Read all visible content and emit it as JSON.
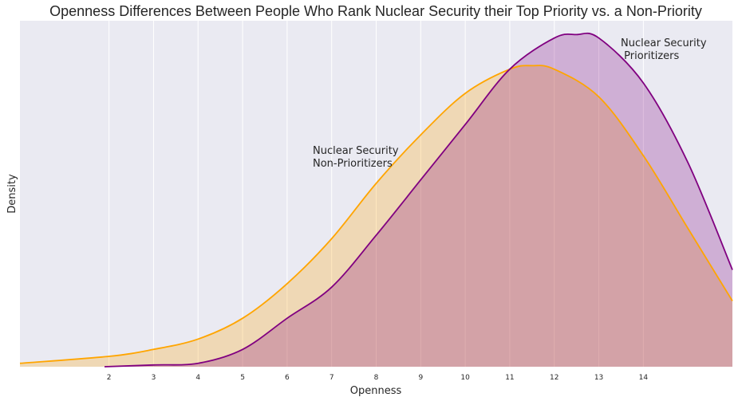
{
  "chart_data": {
    "type": "area",
    "subtype": "kde",
    "title": "Openness Differences Between People Who Rank Nuclear Security their Top Priority vs. a Non-Priority",
    "xlabel": "Openness",
    "ylabel": "Density",
    "xlim": [
      0,
      16
    ],
    "x_ticks": [
      2,
      3,
      4,
      5,
      6,
      7,
      8,
      9,
      10,
      11,
      12,
      13,
      14
    ],
    "y_ticks": [],
    "grid": true,
    "legend": null,
    "annotations": [
      {
        "text_lines": [
          "Nuclear Security",
          "Non-Prioritizers"
        ],
        "x": 6.5,
        "series": "Nuclear Security Non-Prioritizers"
      },
      {
        "text_lines": [
          "Nuclear Security",
          " Prioritizers"
        ],
        "x": 13.4,
        "series": "Nuclear Security Prioritizers"
      }
    ],
    "series": [
      {
        "name": "Nuclear Security Non-Prioritizers",
        "line_color": "#FFA500",
        "fill_color": "#F0D9B5",
        "peak_x": 11.5,
        "x": [
          0,
          2,
          3,
          4,
          5,
          6,
          7,
          8,
          9,
          10,
          11,
          11.5,
          12,
          13,
          14,
          15,
          16
        ],
        "density_relative": [
          0.01,
          0.03,
          0.05,
          0.08,
          0.14,
          0.24,
          0.37,
          0.53,
          0.67,
          0.79,
          0.86,
          0.87,
          0.86,
          0.78,
          0.61,
          0.4,
          0.19
        ]
      },
      {
        "name": "Nuclear Security Prioritizers",
        "line_color": "#800080",
        "fill_color": "#D2AED6",
        "peak_x": 12.5,
        "x": [
          1.9,
          3,
          4,
          5,
          6,
          7,
          8,
          9,
          10,
          11,
          12,
          12.5,
          13,
          14,
          15,
          16
        ],
        "density_relative": [
          0.0,
          0.005,
          0.01,
          0.05,
          0.14,
          0.23,
          0.38,
          0.54,
          0.7,
          0.86,
          0.95,
          0.96,
          0.95,
          0.82,
          0.59,
          0.28
        ]
      }
    ]
  }
}
